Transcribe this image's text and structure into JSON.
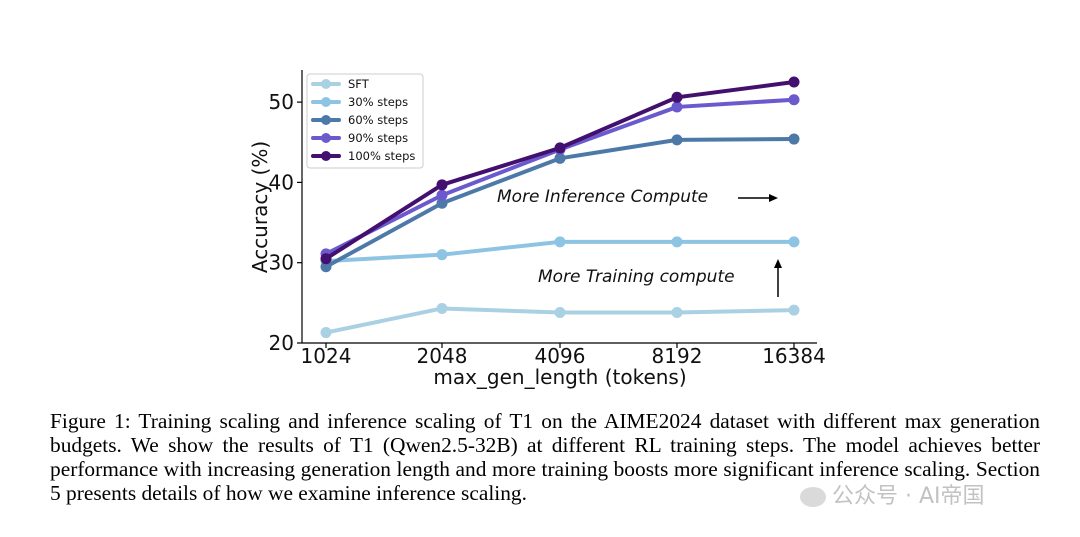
{
  "chart_data": {
    "type": "line",
    "categories": [
      "1024",
      "2048",
      "4096",
      "8192",
      "16384"
    ],
    "xlabel": "max_gen_length (tokens)",
    "ylabel": "Accuracy (%)",
    "ylim": [
      20,
      54
    ],
    "yticks": [
      20,
      30,
      40,
      50
    ],
    "legend_position": "top-left",
    "series": [
      {
        "name": "SFT",
        "color": "#a9d1e3",
        "values": [
          21.3,
          24.3,
          23.8,
          23.8,
          24.1
        ]
      },
      {
        "name": "30% steps",
        "color": "#8ec4e3",
        "values": [
          30.2,
          31.0,
          32.6,
          32.6,
          32.6
        ]
      },
      {
        "name": "60% steps",
        "color": "#4d79a8",
        "values": [
          29.5,
          37.4,
          43.0,
          45.3,
          45.4
        ]
      },
      {
        "name": "90% steps",
        "color": "#6a5acd",
        "values": [
          31.1,
          38.4,
          44.1,
          49.4,
          50.3
        ]
      },
      {
        "name": "100% steps",
        "color": "#44106f",
        "values": [
          30.5,
          39.7,
          44.3,
          50.6,
          52.5
        ]
      }
    ],
    "annotations": [
      {
        "text": "More Inference Compute",
        "arrow": "right"
      },
      {
        "text": "More Training compute",
        "arrow": "up"
      }
    ]
  },
  "caption": "Figure 1: Training scaling and inference scaling of T1 on the AIME2024 dataset with different max generation budgets. We show the results of T1 (Qwen2.5-32B) at different RL training steps. The model achieves better performance with increasing generation length and more training boosts more significant inference scaling. Section 5 presents details of how we examine inference scaling.",
  "watermark": "公众号 · AI帝国"
}
